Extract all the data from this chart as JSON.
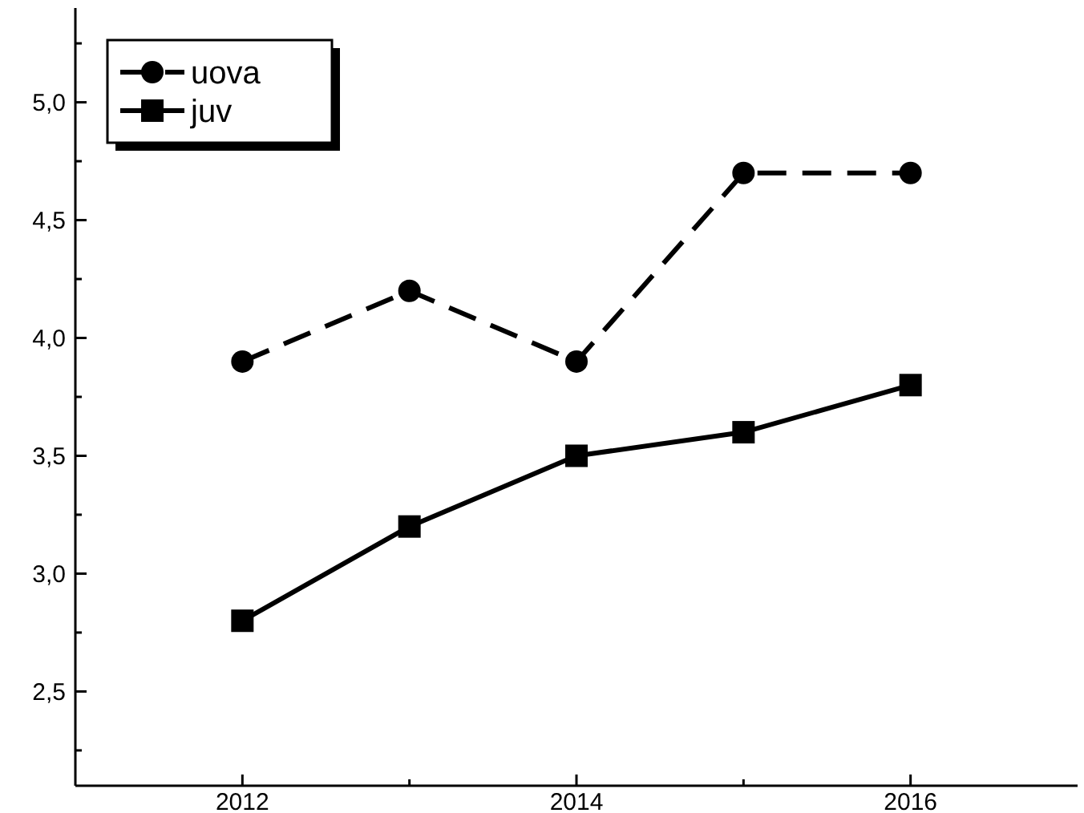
{
  "chart_data": {
    "type": "line",
    "x": [
      2012,
      2013,
      2014,
      2015,
      2016
    ],
    "series": [
      {
        "name": "uova",
        "color": "#000000",
        "values": [
          3.9,
          4.2,
          3.9,
          4.7,
          4.7
        ],
        "marker": "circle",
        "line_style": "dashed"
      },
      {
        "name": "juv",
        "color": "#000000",
        "values": [
          2.8,
          3.2,
          3.5,
          3.6,
          3.8
        ],
        "marker": "square",
        "line_style": "solid"
      }
    ],
    "xlim": [
      2011,
      2017
    ],
    "xticks": [
      2012,
      {
        "value": 2013,
        "label": null
      },
      2014,
      {
        "value": 2015,
        "label": null
      },
      2016
    ],
    "ylim": [
      2.1,
      5.4
    ],
    "yticks": [
      {
        "value": 2.25,
        "label": null
      },
      {
        "value": 2.5,
        "label": "2,5"
      },
      {
        "value": 2.75,
        "label": null
      },
      {
        "value": 3,
        "label": "3,0"
      },
      {
        "value": 3.25,
        "label": null
      },
      {
        "value": 3.5,
        "label": "3,5"
      },
      {
        "value": 3.75,
        "label": null
      },
      {
        "value": 4,
        "label": "4,0"
      },
      {
        "value": 4.25,
        "label": null
      },
      {
        "value": 4.5,
        "label": "4,5"
      },
      {
        "value": 4.75,
        "label": null
      },
      {
        "value": 5,
        "label": "5,0"
      },
      {
        "value": 5.25,
        "label": null
      }
    ],
    "legend": "top left",
    "grid": false
  }
}
